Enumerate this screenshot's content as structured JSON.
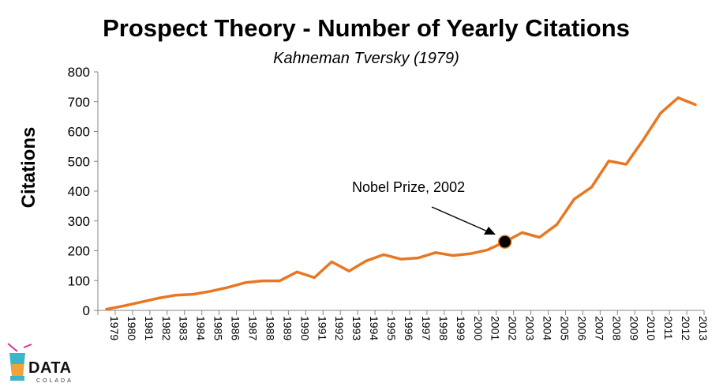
{
  "chart_data": {
    "type": "line",
    "title": "Prospect Theory - Number of Yearly Citations",
    "subtitle": "Kahneman Tversky (1979)",
    "xlabel": "",
    "ylabel": "Citations",
    "ylim": [
      0,
      800
    ],
    "yticks": [
      0,
      100,
      200,
      300,
      400,
      500,
      600,
      700,
      800
    ],
    "grid": false,
    "legend": "none",
    "line_color": "#E87722",
    "categories": [
      "1979",
      "1980",
      "1981",
      "1982",
      "1983",
      "1984",
      "1985",
      "1986",
      "1987",
      "1988",
      "1989",
      "1990",
      "1991",
      "1992",
      "1993",
      "1994",
      "1995",
      "1996",
      "1997",
      "1998",
      "1999",
      "2000",
      "2001",
      "2002",
      "2003",
      "2004",
      "2005",
      "2006",
      "2007",
      "2008",
      "2009",
      "2010",
      "2011",
      "2012",
      "2013"
    ],
    "series": [
      {
        "values": [
          4,
          15,
          28,
          41,
          51,
          54,
          64,
          77,
          93,
          99,
          99,
          129,
          110,
          163,
          132,
          166,
          187,
          172,
          176,
          194,
          184,
          190,
          203,
          230,
          261,
          245,
          288,
          373,
          413,
          501,
          490,
          573,
          662,
          713,
          690
        ]
      }
    ],
    "annotation": {
      "text": "Nobel Prize, 2002",
      "x": "2002",
      "y": 230
    }
  },
  "logo": {
    "text": "DATA",
    "subtext": "COLADA"
  }
}
